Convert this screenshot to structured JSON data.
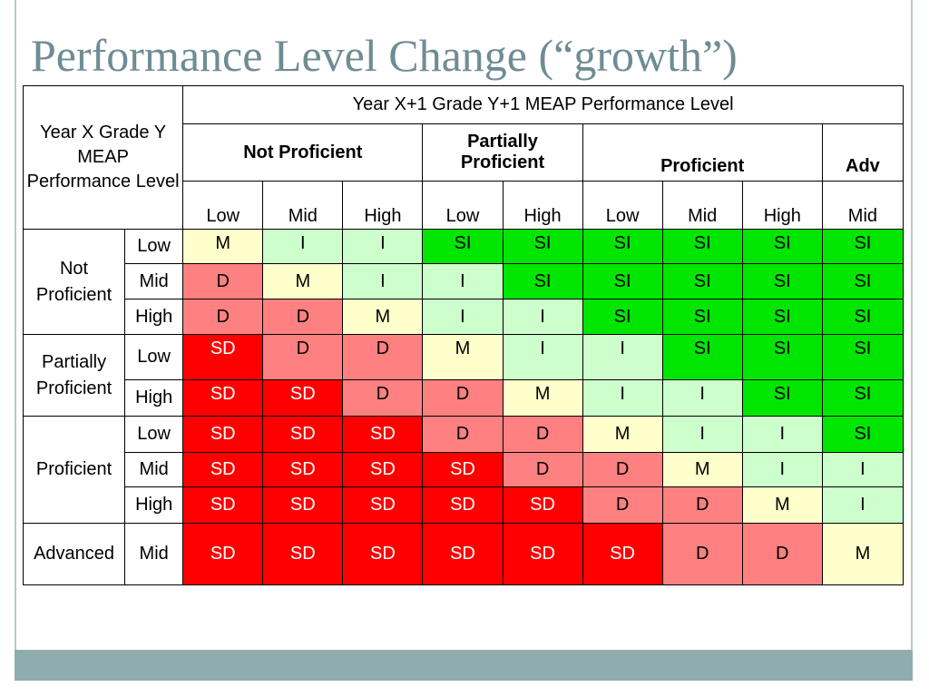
{
  "title": "Performance Level Change (“growth”)",
  "corner_label": "Year X Grade Y MEAP Performance Level",
  "next_year_label": "Year X+1 Grade Y+1 MEAP Performance Level",
  "column_groups": [
    {
      "label": "Not Proficient",
      "span": 3
    },
    {
      "label": "Partially Proficient",
      "span": 2
    },
    {
      "label": "Proficient",
      "span": 3
    },
    {
      "label": "Adv",
      "span": 1
    }
  ],
  "column_subs": [
    "Low",
    "Mid",
    "High",
    "Low",
    "High",
    "Low",
    "Mid",
    "High",
    "Mid"
  ],
  "row_groups": [
    {
      "label": "Not Proficient",
      "rows": [
        {
          "level": "Low",
          "cells": [
            "M",
            "I",
            "I",
            "SI",
            "SI",
            "SI",
            "SI",
            "SI",
            "SI"
          ]
        },
        {
          "level": "Mid",
          "cells": [
            "D",
            "M",
            "I",
            "I",
            "SI",
            "SI",
            "SI",
            "SI",
            "SI"
          ]
        },
        {
          "level": "High",
          "cells": [
            "D",
            "D",
            "M",
            "I",
            "I",
            "SI",
            "SI",
            "SI",
            "SI"
          ]
        }
      ]
    },
    {
      "label": "Partially Proficient",
      "rows": [
        {
          "level": "Low",
          "cells": [
            "SD",
            "D",
            "D",
            "M",
            "I",
            "I",
            "SI",
            "SI",
            "SI"
          ]
        },
        {
          "level": "High",
          "cells": [
            "SD",
            "SD",
            "D",
            "D",
            "M",
            "I",
            "I",
            "SI",
            "SI"
          ]
        }
      ]
    },
    {
      "label": "Proficient",
      "rows": [
        {
          "level": "Low",
          "cells": [
            "SD",
            "SD",
            "SD",
            "D",
            "D",
            "M",
            "I",
            "I",
            "SI"
          ]
        },
        {
          "level": "Mid",
          "cells": [
            "SD",
            "SD",
            "SD",
            "SD",
            "D",
            "D",
            "M",
            "I",
            "I"
          ]
        },
        {
          "level": "High",
          "cells": [
            "SD",
            "SD",
            "SD",
            "SD",
            "SD",
            "D",
            "D",
            "M",
            "I"
          ]
        }
      ]
    },
    {
      "label": "Advanced",
      "rows": [
        {
          "level": "Mid",
          "cells": [
            "SD",
            "SD",
            "SD",
            "SD",
            "SD",
            "SD",
            "D",
            "D",
            "M"
          ]
        }
      ]
    }
  ],
  "cell_colors": {
    "M": "#ffffcc",
    "I": "#ccffcc",
    "SI": "#00e600",
    "D": "#ff8080",
    "SD": "#ff0000"
  }
}
